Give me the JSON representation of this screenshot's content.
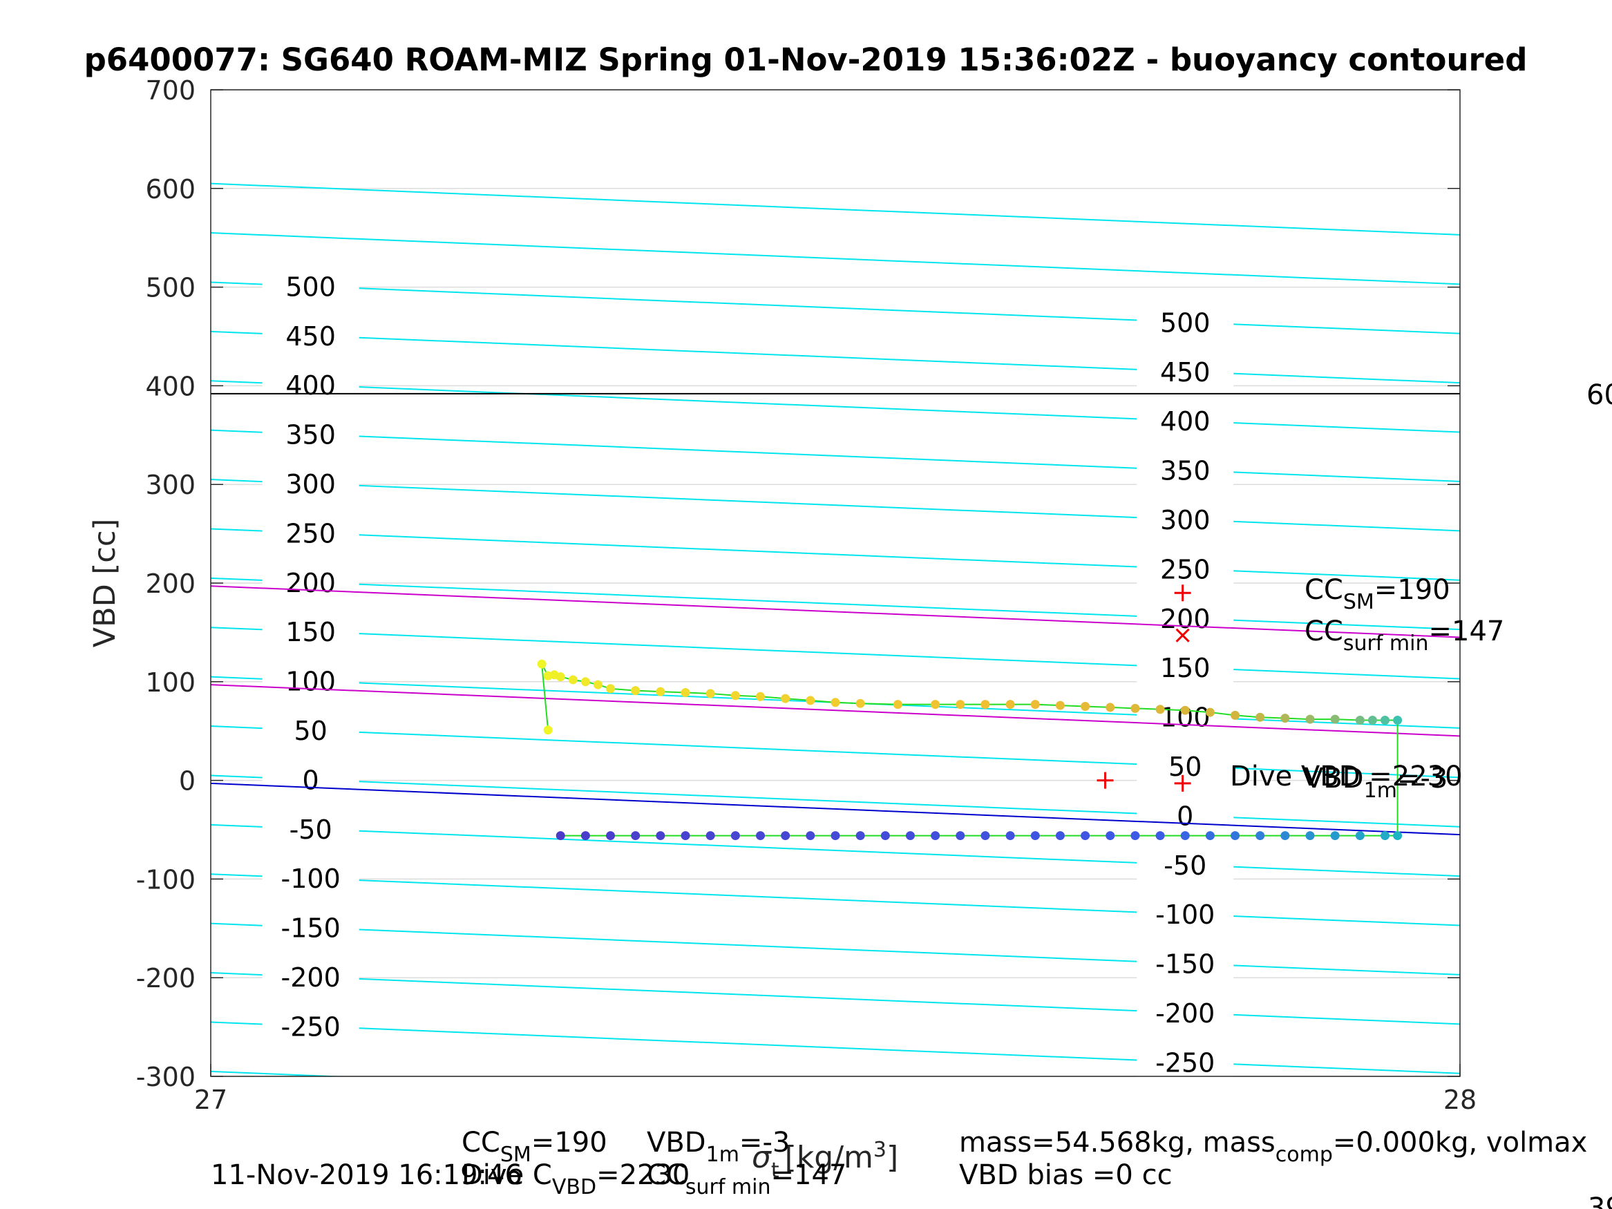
{
  "chart_data": {
    "type": "scatter",
    "title": "p6400077: SG640 ROAM-MIZ Spring 01-Nov-2019 15:36:02Z - buoyancy contoured",
    "xlabel_parts": {
      "sigma": "σ",
      "sub": "t",
      "unit": "[kg/m",
      "sup": "3",
      "close": "]"
    },
    "ylabel": "VBD [cc]",
    "xlim": [
      27,
      28
    ],
    "ylim": [
      -300,
      700
    ],
    "x_ticks": [
      "27",
      "28"
    ],
    "y_ticks": [
      "-300",
      "-200",
      "-100",
      "0",
      "100",
      "200",
      "300",
      "400",
      "500",
      "600",
      "700"
    ],
    "grid": true,
    "legend": "none",
    "colors": {
      "contour": "#00e5ee",
      "neutral_line": "#0000cc",
      "bound_lines": "#cc00cc",
      "max_line": "#000000",
      "connector": "#22dd22",
      "markers": "#ee0000"
    },
    "buoyancy_contours": {
      "levels": [
        -300,
        -250,
        -200,
        -150,
        -100,
        -50,
        0,
        50,
        100,
        150,
        200,
        250,
        300,
        350,
        400,
        450,
        500,
        550,
        600
      ],
      "slope_per_sigma": -52,
      "offset_at_x27": 5,
      "label_x": [
        27.08,
        27.78
      ],
      "labels_left": [
        "-250",
        "-200",
        "-150",
        "-100",
        "-50",
        "0",
        "50",
        "100",
        "150",
        "200",
        "250",
        "300",
        "350",
        "400",
        "450",
        "500"
      ],
      "labels_right": [
        "-250",
        "-200",
        "-150",
        "-100",
        "-50",
        "0",
        "50",
        "100",
        "150",
        "200",
        "250",
        "300",
        "350",
        "400",
        "450",
        "500"
      ]
    },
    "reference_lines": [
      {
        "name": "max",
        "x": [
          27,
          28
        ],
        "y": [
          392,
          392
        ]
      },
      {
        "name": "upper",
        "x": [
          27,
          28
        ],
        "y": [
          197,
          145
        ]
      },
      {
        "name": "lower",
        "x": [
          27,
          28
        ],
        "y": [
          97,
          45
        ]
      },
      {
        "name": "neutral",
        "x": [
          27,
          28
        ],
        "y": [
          -3,
          -55
        ]
      }
    ],
    "upper_branch": [
      [
        27.265,
        118
      ],
      [
        27.27,
        106
      ],
      [
        27.275,
        107
      ],
      [
        27.28,
        105
      ],
      [
        27.29,
        102
      ],
      [
        27.3,
        100
      ],
      [
        27.31,
        97
      ],
      [
        27.32,
        93
      ],
      [
        27.34,
        91
      ],
      [
        27.36,
        90
      ],
      [
        27.38,
        89
      ],
      [
        27.4,
        88
      ],
      [
        27.42,
        86
      ],
      [
        27.44,
        85
      ],
      [
        27.46,
        83
      ],
      [
        27.48,
        81
      ],
      [
        27.5,
        79
      ],
      [
        27.52,
        78
      ],
      [
        27.55,
        77
      ],
      [
        27.58,
        77
      ],
      [
        27.6,
        77
      ],
      [
        27.62,
        77
      ],
      [
        27.64,
        77
      ],
      [
        27.66,
        77
      ],
      [
        27.68,
        76
      ],
      [
        27.7,
        75
      ],
      [
        27.72,
        74
      ],
      [
        27.74,
        73
      ],
      [
        27.76,
        72
      ],
      [
        27.78,
        71
      ],
      [
        27.8,
        69
      ],
      [
        27.82,
        66
      ],
      [
        27.84,
        64
      ],
      [
        27.86,
        63
      ],
      [
        27.88,
        62
      ],
      [
        27.9,
        62
      ],
      [
        27.92,
        61
      ],
      [
        27.93,
        61
      ],
      [
        27.94,
        61
      ],
      [
        27.95,
        61
      ]
    ],
    "upper_start_point": [
      27.27,
      51
    ],
    "lower_branch": [
      [
        27.28,
        -56
      ],
      [
        27.3,
        -56
      ],
      [
        27.32,
        -56
      ],
      [
        27.34,
        -56
      ],
      [
        27.36,
        -56
      ],
      [
        27.38,
        -56
      ],
      [
        27.4,
        -56
      ],
      [
        27.42,
        -56
      ],
      [
        27.44,
        -56
      ],
      [
        27.46,
        -56
      ],
      [
        27.48,
        -56
      ],
      [
        27.5,
        -56
      ],
      [
        27.52,
        -56
      ],
      [
        27.54,
        -56
      ],
      [
        27.56,
        -56
      ],
      [
        27.58,
        -56
      ],
      [
        27.6,
        -56
      ],
      [
        27.62,
        -56
      ],
      [
        27.64,
        -56
      ],
      [
        27.66,
        -56
      ],
      [
        27.68,
        -56
      ],
      [
        27.7,
        -56
      ],
      [
        27.72,
        -56
      ],
      [
        27.74,
        -56
      ],
      [
        27.76,
        -56
      ],
      [
        27.78,
        -56
      ],
      [
        27.8,
        -56
      ],
      [
        27.82,
        -56
      ],
      [
        27.84,
        -56
      ],
      [
        27.86,
        -56
      ],
      [
        27.88,
        -56
      ],
      [
        27.9,
        -56
      ],
      [
        27.92,
        -56
      ],
      [
        27.94,
        -56
      ],
      [
        27.95,
        -56
      ]
    ],
    "markers": [
      {
        "symbol": "+",
        "x": 27.778,
        "y": 190
      },
      {
        "symbol": "x",
        "x": 27.778,
        "y": 147
      },
      {
        "symbol": "+",
        "x": 27.716,
        "y": 0
      },
      {
        "symbol": "+",
        "x": 27.778,
        "y": -3
      }
    ],
    "annotations": {
      "cc_sm": {
        "main": "CC",
        "sub": "SM",
        "value": "=190"
      },
      "cc_surf": {
        "main": "CC",
        "sub": "surf min",
        "value": "=147"
      },
      "dive_vbd": "Dive VBD =2230",
      "vbd1m": {
        "main": "VBD",
        "sub": "1m",
        "value": "=-3"
      },
      "right_cut_top": "60",
      "right_cut_bottom": "39"
    }
  },
  "footer": {
    "timestamp": "11-Nov-2019 16:19:46",
    "cc_sm": {
      "main": "CC",
      "sub": "SM",
      "value": "=190"
    },
    "dive_cc": {
      "main": "Dive C",
      "sub": "VBD",
      "value": "=2230"
    },
    "vbd1m": {
      "main": "VBD",
      "sub": "1m",
      "value": "=-3"
    },
    "cc_surf": {
      "main": "CC",
      "sub": "surf min",
      "value": "=147"
    },
    "mass": {
      "a": "mass=54.568kg, mass",
      "sub": "comp",
      "b": "=0.000kg, volmax"
    },
    "vbd_bias": "VBD bias =0 cc"
  }
}
